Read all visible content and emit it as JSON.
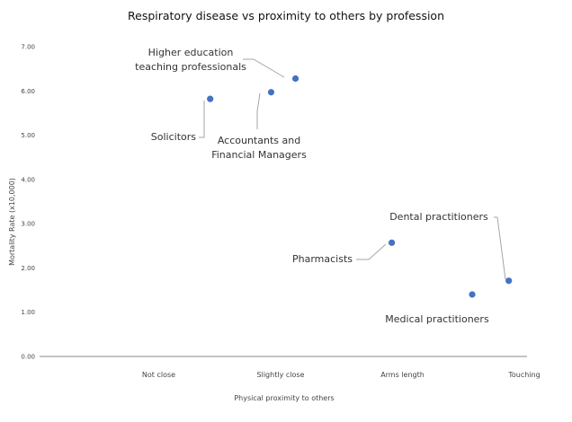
{
  "chart_data": {
    "type": "scatter",
    "title": "Respiratory disease vs proximity to others by profession",
    "xlabel": "Physical proximity to others",
    "ylabel": "Mortality Rate (x10,000)",
    "ylim": [
      0,
      7
    ],
    "y_ticks": [
      "0.00",
      "1.00",
      "2.00",
      "3.00",
      "4.00",
      "5.00",
      "6.00",
      "7.00"
    ],
    "x_categories": [
      "Not close",
      "Slightly close",
      "Arms length",
      "Touching"
    ],
    "xlim": [
      0,
      4
    ],
    "grid": false,
    "legend": "none",
    "points": [
      {
        "label_lines": [
          "Solicitors"
        ],
        "x": 1.4,
        "y": 5.82
      },
      {
        "label_lines": [
          "Accountants and",
          "Financial Managers"
        ],
        "x": 1.9,
        "y": 5.97
      },
      {
        "label_lines": [
          "Higher education",
          "teaching professionals"
        ],
        "x": 2.1,
        "y": 6.28
      },
      {
        "label_lines": [
          "Pharmacists"
        ],
        "x": 2.89,
        "y": 2.57
      },
      {
        "label_lines": [
          "Medical practitioners"
        ],
        "x": 3.55,
        "y": 1.4
      },
      {
        "label_lines": [
          "Dental practitioners"
        ],
        "x": 3.85,
        "y": 1.71
      }
    ]
  }
}
